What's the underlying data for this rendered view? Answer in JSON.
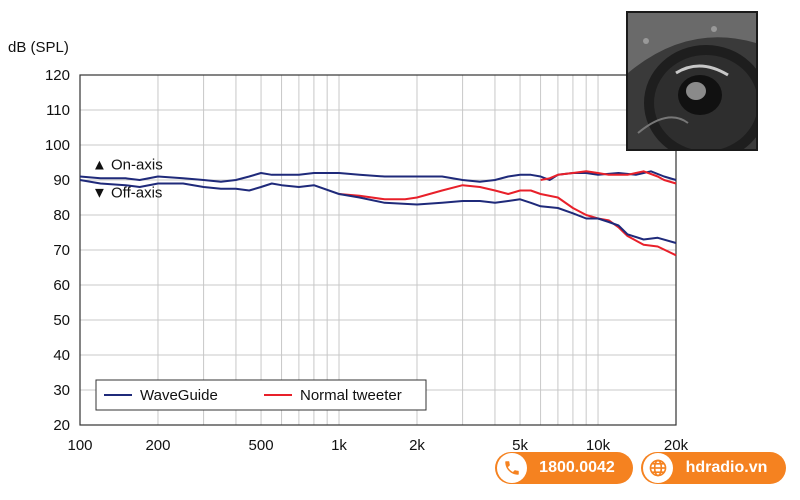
{
  "chart_data": {
    "type": "line",
    "ylabel": "dB (SPL)",
    "xlabel": "",
    "x_scale": "log",
    "xlim": [
      100,
      20000
    ],
    "ylim": [
      20,
      120
    ],
    "y_ticks": [
      20,
      30,
      40,
      50,
      60,
      70,
      80,
      90,
      100,
      110,
      120
    ],
    "x_tick_labels": [
      {
        "value": 100,
        "label": "100"
      },
      {
        "value": 200,
        "label": "200"
      },
      {
        "value": 500,
        "label": "500"
      },
      {
        "value": 1000,
        "label": "1k"
      },
      {
        "value": 2000,
        "label": "2k"
      },
      {
        "value": 5000,
        "label": "5k"
      },
      {
        "value": 10000,
        "label": "10k"
      },
      {
        "value": 20000,
        "label": "20k"
      }
    ],
    "grid": true,
    "legend_position": "bottom-left",
    "annotations": [
      {
        "text": "▲ On-axis",
        "y": 93
      },
      {
        "text": "▼ Off-axis",
        "y": 85
      }
    ],
    "series": [
      {
        "name": "WaveGuide",
        "color": "#1f2a7a",
        "points": [
          [
            100,
            91
          ],
          [
            120,
            90.5
          ],
          [
            150,
            90.5
          ],
          [
            170,
            90
          ],
          [
            200,
            91
          ],
          [
            250,
            90.5
          ],
          [
            300,
            90
          ],
          [
            350,
            89.5
          ],
          [
            400,
            90
          ],
          [
            450,
            91
          ],
          [
            500,
            92
          ],
          [
            550,
            91.5
          ],
          [
            600,
            91.5
          ],
          [
            700,
            91.5
          ],
          [
            800,
            92
          ],
          [
            1000,
            92
          ],
          [
            1200,
            91.5
          ],
          [
            1500,
            91
          ],
          [
            2000,
            91
          ],
          [
            2500,
            91
          ],
          [
            3000,
            90
          ],
          [
            3500,
            89.5
          ],
          [
            4000,
            90
          ],
          [
            4500,
            91
          ],
          [
            5000,
            91.5
          ],
          [
            5500,
            91.5
          ],
          [
            6000,
            91
          ],
          [
            6500,
            90
          ],
          [
            7000,
            91.5
          ],
          [
            8000,
            92
          ],
          [
            9000,
            92
          ],
          [
            10000,
            91.5
          ],
          [
            12000,
            92
          ],
          [
            14000,
            91.5
          ],
          [
            15000,
            92
          ],
          [
            16000,
            92.5
          ],
          [
            18000,
            91
          ],
          [
            20000,
            90
          ]
        ]
      },
      {
        "name": "Normal tweeter",
        "color": "#e8202a",
        "points": [
          [
            1000,
            86
          ],
          [
            1200,
            85.5
          ],
          [
            1500,
            84.5
          ],
          [
            1800,
            84.5
          ],
          [
            2000,
            85
          ],
          [
            2500,
            87
          ],
          [
            3000,
            88.5
          ],
          [
            3500,
            88
          ],
          [
            4000,
            87
          ],
          [
            4500,
            86
          ],
          [
            5000,
            87
          ],
          [
            5500,
            87
          ],
          [
            6000,
            86
          ],
          [
            7000,
            85
          ],
          [
            8000,
            82
          ],
          [
            9000,
            80
          ],
          [
            10000,
            79
          ],
          [
            11000,
            78.5
          ],
          [
            12000,
            76.5
          ],
          [
            13000,
            74
          ],
          [
            15000,
            71.5
          ],
          [
            17000,
            71
          ],
          [
            20000,
            68.5
          ]
        ]
      },
      {
        "name": "WaveGuide",
        "color": "#1f2a7a",
        "points": [
          [
            100,
            90
          ],
          [
            120,
            89
          ],
          [
            150,
            88.5
          ],
          [
            170,
            88
          ],
          [
            200,
            89
          ],
          [
            250,
            89
          ],
          [
            300,
            88
          ],
          [
            350,
            87.5
          ],
          [
            400,
            87.5
          ],
          [
            450,
            87
          ],
          [
            500,
            88
          ],
          [
            550,
            89
          ],
          [
            600,
            88.5
          ],
          [
            700,
            88
          ],
          [
            800,
            88.5
          ],
          [
            1000,
            86
          ],
          [
            1200,
            85
          ],
          [
            1500,
            83.5
          ],
          [
            2000,
            83
          ],
          [
            2500,
            83.5
          ],
          [
            3000,
            84
          ],
          [
            3500,
            84
          ],
          [
            4000,
            83.5
          ],
          [
            4500,
            84
          ],
          [
            5000,
            84.5
          ],
          [
            5500,
            83.5
          ],
          [
            6000,
            82.5
          ],
          [
            7000,
            82
          ],
          [
            8000,
            80.5
          ],
          [
            9000,
            79
          ],
          [
            10000,
            79
          ],
          [
            11000,
            78
          ],
          [
            12000,
            77
          ],
          [
            13000,
            74.5
          ],
          [
            15000,
            73
          ],
          [
            17000,
            73.5
          ],
          [
            20000,
            72
          ]
        ]
      },
      {
        "name": "Normal tweeter",
        "color": "#e8202a",
        "points": [
          [
            6000,
            90
          ],
          [
            6500,
            90.5
          ],
          [
            7000,
            91.5
          ],
          [
            8000,
            92
          ],
          [
            9000,
            92.5
          ],
          [
            10000,
            92
          ],
          [
            11000,
            91.5
          ],
          [
            12000,
            91.5
          ],
          [
            13000,
            91.5
          ],
          [
            14000,
            92
          ],
          [
            15000,
            92.5
          ],
          [
            17000,
            91
          ],
          [
            18000,
            90
          ],
          [
            20000,
            89
          ]
        ]
      }
    ]
  },
  "contact": {
    "phone": "1800.0042",
    "website": "hdradio.vn",
    "accent_color": "#f58220"
  },
  "icons": {
    "phone": "phone-icon",
    "web": "globe-icon"
  }
}
